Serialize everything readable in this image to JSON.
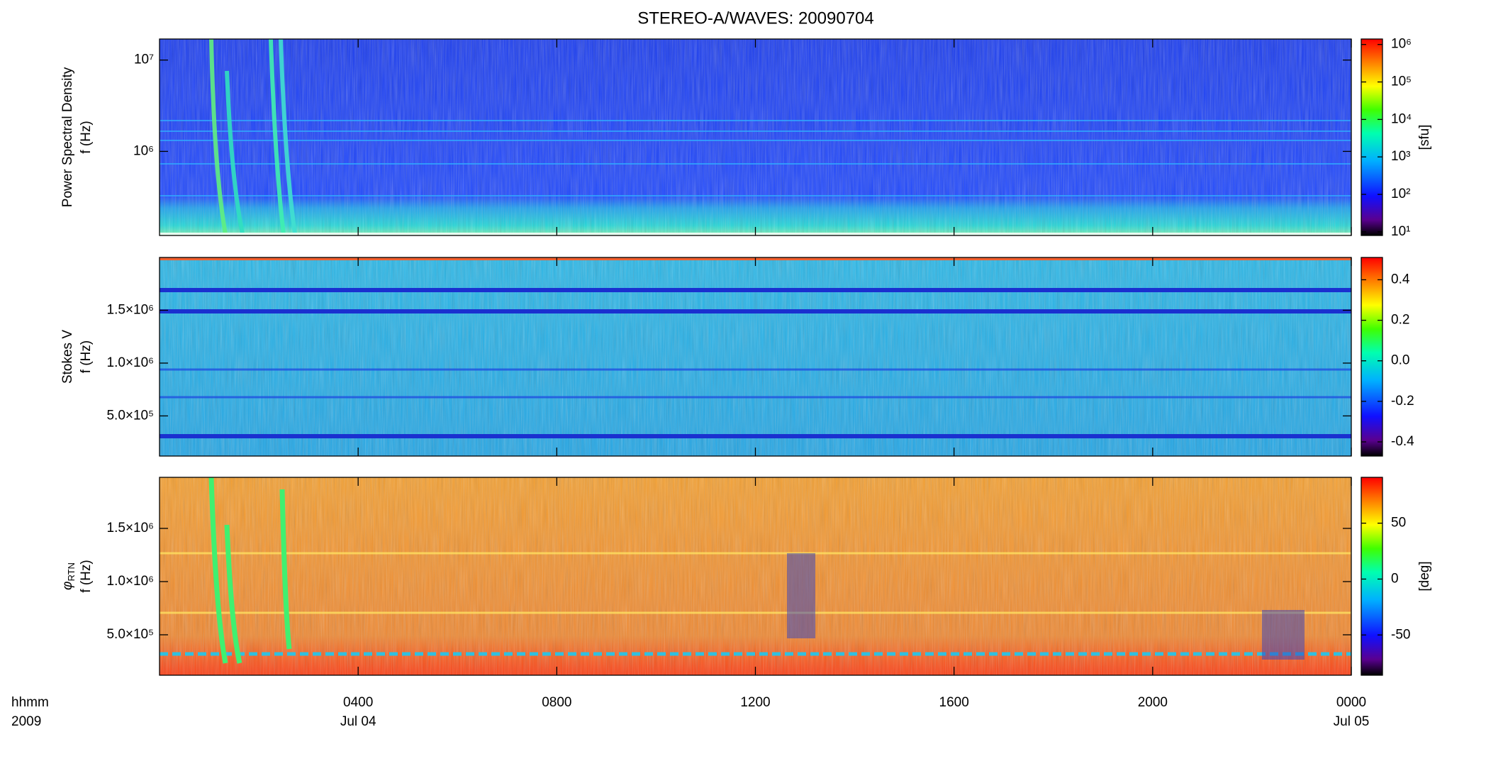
{
  "title": "STEREO-A/WAVES: 20090704",
  "x_axis": {
    "xlim": [
      0,
      24
    ],
    "xticks": [
      {
        "value": 4,
        "label": "0400"
      },
      {
        "value": 8,
        "label": "0800"
      },
      {
        "value": 12,
        "label": "1200"
      },
      {
        "value": 16,
        "label": "1600"
      },
      {
        "value": 20,
        "label": "2000"
      },
      {
        "value": 24,
        "label": "0000"
      }
    ],
    "date_labels": [
      {
        "value": 4,
        "label": "Jul 04"
      },
      {
        "value": 24,
        "label": "Jul 05"
      }
    ],
    "row_labels": [
      "hhmm",
      "2009"
    ]
  },
  "chart_data": [
    {
      "type": "spectrogram",
      "ylabel": [
        "Power Spectral Density",
        "f (Hz)"
      ],
      "yscale": "log",
      "ylim": [
        120000,
        17000000
      ],
      "yticks": [
        {
          "value": 10000000,
          "label": "10⁷"
        },
        {
          "value": 1000000,
          "label": "10⁶"
        }
      ],
      "colorbar": {
        "scale": "log",
        "lim": [
          8,
          1400000
        ],
        "label": "[sfu]",
        "ticks": [
          {
            "value": 10,
            "label": "10¹"
          },
          {
            "value": 100,
            "label": "10²"
          },
          {
            "value": 1000,
            "label": "10³"
          },
          {
            "value": 10000,
            "label": "10⁴"
          },
          {
            "value": 100000,
            "label": "10⁵"
          },
          {
            "value": 1000000,
            "label": "10⁶"
          }
        ]
      }
    },
    {
      "type": "spectrogram",
      "ylabel": [
        "Stokes V",
        "f (Hz)"
      ],
      "yscale": "linear",
      "ylim": [
        120000,
        2000000
      ],
      "yticks": [
        {
          "value": 1500000,
          "label": "1.5×10⁶"
        },
        {
          "value": 1000000,
          "label": "1.0×10⁶"
        },
        {
          "value": 500000,
          "label": "5.0×10⁵"
        }
      ],
      "colorbar": {
        "scale": "linear",
        "lim": [
          -0.47,
          0.51
        ],
        "ticks": [
          0.4,
          0.2,
          {
            "value": 0,
            "label": "0.0"
          },
          -0.2,
          -0.4
        ]
      }
    },
    {
      "type": "spectrogram",
      "ylabel_symbol": "φ",
      "ylabel_subscript": "RTN",
      "ylabel": [
        "f (Hz)"
      ],
      "yscale": "linear",
      "ylim": [
        120000,
        1980000
      ],
      "yticks": [
        {
          "value": 1500000,
          "label": "1.5×10⁶"
        },
        {
          "value": 1000000,
          "label": "1.0×10⁶"
        },
        {
          "value": 500000,
          "label": "5.0×10⁵"
        }
      ],
      "colorbar": {
        "scale": "linear",
        "lim": [
          -86,
          91
        ],
        "label": "[deg]",
        "ticks": [
          50,
          0,
          -50
        ]
      }
    }
  ]
}
